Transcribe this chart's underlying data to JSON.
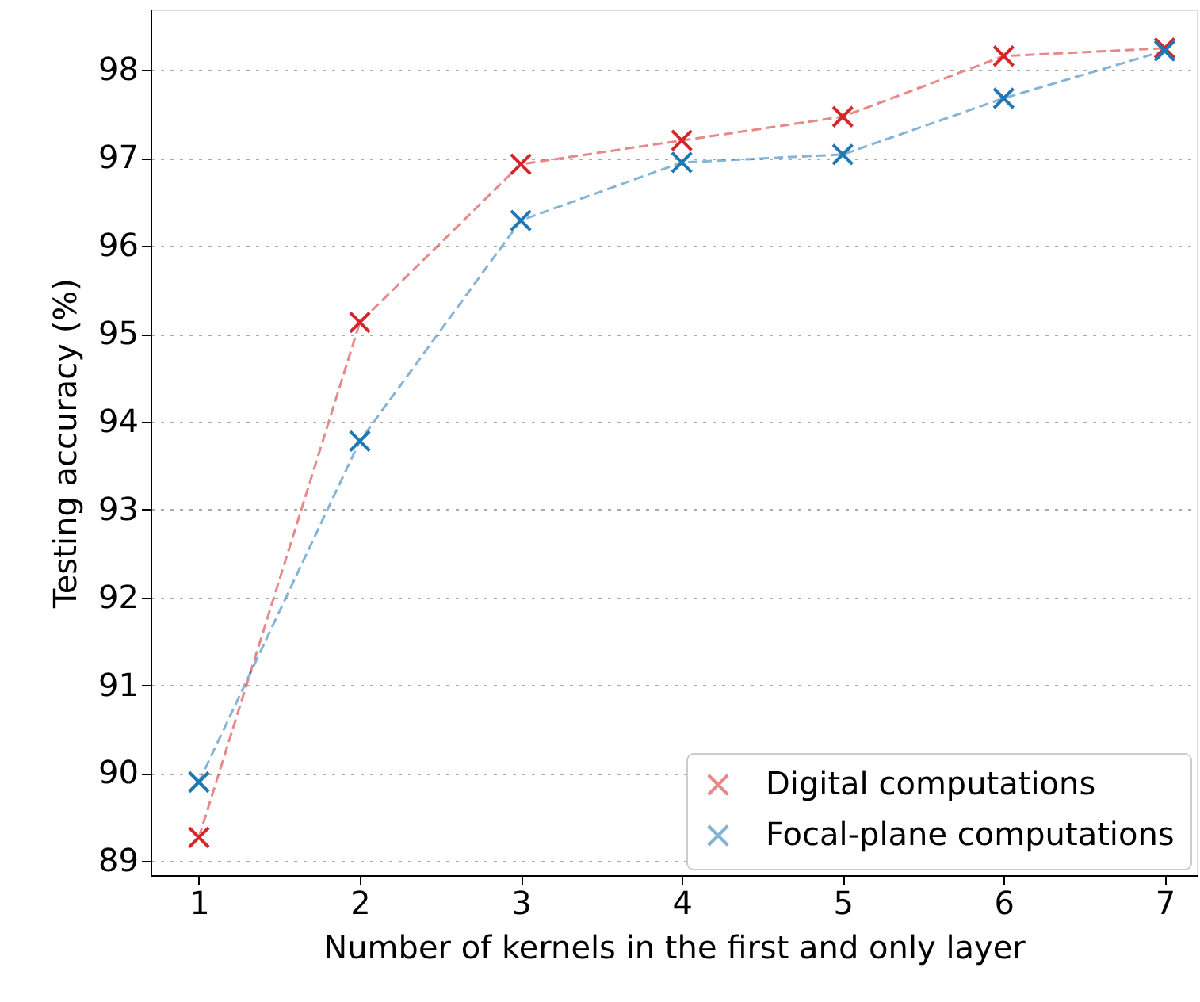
{
  "chart_data": {
    "type": "line",
    "xlabel": "Number of kernels in the first and only layer",
    "ylabel": "Testing accuracy (%)",
    "x": [
      1,
      2,
      3,
      4,
      5,
      6,
      7
    ],
    "series": [
      {
        "name": "Digital computations",
        "color": "#d62728",
        "values": [
          89.27,
          95.13,
          96.93,
          97.2,
          97.47,
          98.16,
          98.25
        ]
      },
      {
        "name": "Focal-plane computations",
        "color": "#1f77b4",
        "values": [
          89.9,
          93.78,
          96.29,
          96.95,
          97.04,
          97.68,
          98.22
        ]
      }
    ],
    "xlim": [
      0.7,
      7.2
    ],
    "xticks": [
      1,
      2,
      3,
      4,
      5,
      6,
      7
    ],
    "ylim": [
      88.84,
      98.69
    ],
    "yticks": [
      89,
      90,
      91,
      92,
      93,
      94,
      95,
      96,
      97,
      98
    ],
    "grid": "y",
    "legend": "bottom right",
    "marker": "cross",
    "line_style": "dashed"
  }
}
